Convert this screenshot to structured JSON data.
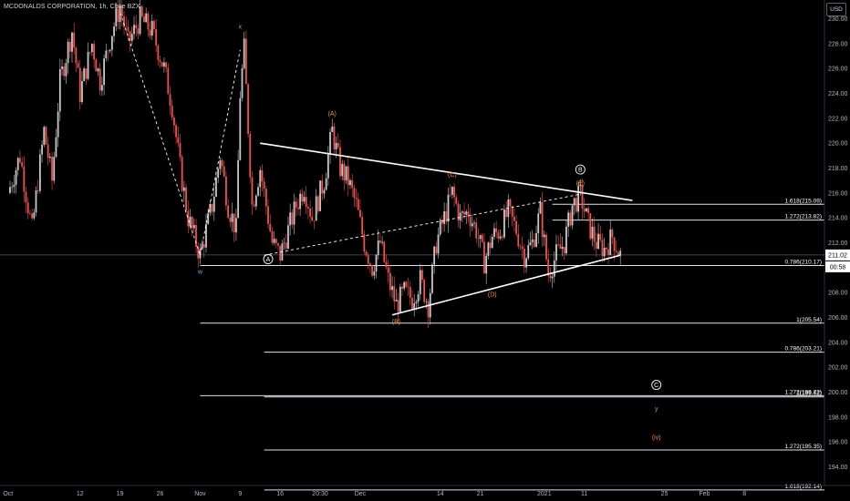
{
  "header": {
    "title": "MCDONALDS CORPORATION, 1h, Cboe BZX",
    "currency": "USD"
  },
  "price_badges": {
    "last_price": "211.02",
    "countdown": "00:58"
  },
  "colors": {
    "background": "#000000",
    "bull_candle": "#c8c8c8",
    "bear_candle": "#ef5350",
    "wave_blue": "#5fb4d8",
    "wave_orange": "#f7931e",
    "trend_line": "#ffffff"
  },
  "chart_data": {
    "type": "candlestick",
    "title": "MCDONALDS CORPORATION, 1h, Cboe BZX",
    "y_axis": {
      "position": "right",
      "ticks": [
        194,
        196,
        198,
        200,
        202,
        204,
        206,
        208,
        210,
        212,
        214,
        216,
        218,
        220,
        222,
        224,
        226,
        228,
        230
      ],
      "tick_labels": [
        "194.00",
        "196.00",
        "198.00",
        "200.00",
        "202.00",
        "204.00",
        "206.00",
        "208.00",
        "210.00",
        "212.00",
        "214.00",
        "216.00",
        "218.00",
        "220.00",
        "222.00",
        "224.00",
        "226.00",
        "228.00",
        "230.00"
      ],
      "range": [
        192.5,
        231.5
      ]
    },
    "x_axis": {
      "ticks": [
        {
          "label": "Oct",
          "x": 0
        },
        {
          "label": "12",
          "x": 9
        },
        {
          "label": "19",
          "x": 14
        },
        {
          "label": "26",
          "x": 19
        },
        {
          "label": "Nov",
          "x": 24
        },
        {
          "label": "9",
          "x": 29
        },
        {
          "label": "16",
          "x": 34
        },
        {
          "label": "20:30",
          "x": 39
        },
        {
          "label": "Dec",
          "x": 44
        },
        {
          "label": "14",
          "x": 54
        },
        {
          "label": "21",
          "x": 59
        },
        {
          "label": "2021",
          "x": 67
        },
        {
          "label": "11",
          "x": 72
        },
        {
          "label": "25",
          "x": 82
        },
        {
          "label": "Feb",
          "x": 87
        },
        {
          "label": "8",
          "x": 92
        }
      ],
      "range": [
        -1,
        102
      ]
    },
    "price_path": [
      [
        0,
        216
      ],
      [
        1.5,
        219
      ],
      [
        3,
        213
      ],
      [
        4.5,
        221
      ],
      [
        5.5,
        217
      ],
      [
        6.5,
        225
      ],
      [
        8,
        229
      ],
      [
        9,
        224
      ],
      [
        10.5,
        228
      ],
      [
        11.5,
        225
      ],
      [
        13,
        229
      ],
      [
        14,
        231
      ],
      [
        15,
        228
      ],
      [
        16.5,
        230
      ],
      [
        18,
        229
      ],
      [
        19.5,
        226
      ],
      [
        20.5,
        223
      ],
      [
        21.5,
        218
      ],
      [
        22.5,
        214
      ],
      [
        24,
        211
      ],
      [
        25.5,
        215
      ],
      [
        26.5,
        219
      ],
      [
        27.5,
        215
      ],
      [
        28.5,
        213
      ],
      [
        29,
        224
      ],
      [
        29.5,
        227.5
      ],
      [
        30.5,
        215
      ],
      [
        31.5,
        218
      ],
      [
        33,
        212
      ],
      [
        34,
        211
      ],
      [
        35,
        213
      ],
      [
        36,
        215
      ],
      [
        37,
        216.5
      ],
      [
        38,
        214
      ],
      [
        39.5,
        217
      ],
      [
        40.5,
        221
      ],
      [
        41.5,
        218
      ],
      [
        42.5,
        217
      ],
      [
        43.5,
        215
      ],
      [
        44.5,
        212
      ],
      [
        45.5,
        210
      ],
      [
        46.5,
        212
      ],
      [
        47.5,
        209
      ],
      [
        48.5,
        207
      ],
      [
        49.5,
        208
      ],
      [
        50.5,
        207.5
      ],
      [
        51.5,
        209
      ],
      [
        52.5,
        207
      ],
      [
        53.5,
        212
      ],
      [
        54.5,
        214
      ],
      [
        55.5,
        216
      ],
      [
        56.5,
        214
      ],
      [
        57.5,
        214.5
      ],
      [
        58.5,
        213
      ],
      [
        59.5,
        210.5
      ],
      [
        60.5,
        212.5
      ],
      [
        61.5,
        213
      ],
      [
        62.5,
        214.5
      ],
      [
        63.5,
        213
      ],
      [
        64.5,
        211
      ],
      [
        65.5,
        212
      ],
      [
        66.5,
        214.5
      ],
      [
        67.5,
        209.5
      ],
      [
        68.5,
        211
      ],
      [
        69.5,
        212
      ],
      [
        70.5,
        215
      ],
      [
        71.5,
        215.8
      ],
      [
        72.5,
        213.5
      ],
      [
        73.5,
        212
      ],
      [
        74.5,
        211.5
      ],
      [
        75.5,
        212.5
      ],
      [
        76.5,
        211
      ]
    ],
    "fib_levels": [
      {
        "label": "1.618(215.09)",
        "value": 215.09,
        "x_start": 68
      },
      {
        "label": "1.272(213.82)",
        "value": 213.82,
        "x_start": 68
      },
      {
        "label": "0.786(210.17)",
        "value": 210.17,
        "x_start": 24
      },
      {
        "label": "1(205.54)",
        "value": 205.54,
        "x_start": 24
      },
      {
        "label": "0.786(203.21)",
        "value": 203.21,
        "x_start": 32
      },
      {
        "label": "1.272(199.72)",
        "value": 199.72,
        "x_start": 24
      },
      {
        "label": "1(199.62)",
        "value": 199.62,
        "x_start": 32
      },
      {
        "label": "1.272(195.35)",
        "value": 195.35,
        "x_start": 32
      },
      {
        "label": "1.618(192.14)",
        "value": 192.14,
        "x_start": 32
      }
    ],
    "horizontal_line": {
      "value": 211.02
    },
    "wave_labels": [
      {
        "text": "w",
        "x": 24,
        "y": 209.5,
        "color": "blue"
      },
      {
        "text": "x",
        "x": 29,
        "y": 229.2,
        "color": "blue"
      },
      {
        "text": "A",
        "x": 32.5,
        "y": 210.5,
        "color": "white",
        "circled": true
      },
      {
        "text": "(A)",
        "x": 40.5,
        "y": 222.2,
        "color": "orange"
      },
      {
        "text": "(B)",
        "x": 48.5,
        "y": 205.5,
        "color": "orange"
      },
      {
        "text": "(C)",
        "x": 55.5,
        "y": 217.3,
        "color": "orange"
      },
      {
        "text": "(D)",
        "x": 60.5,
        "y": 207.7,
        "color": "orange"
      },
      {
        "text": "(E)",
        "x": 71.5,
        "y": 216.6,
        "color": "orange"
      },
      {
        "text": "B",
        "x": 71.5,
        "y": 217.7,
        "color": "white",
        "circled": true
      },
      {
        "text": "C",
        "x": 81,
        "y": 200.4,
        "color": "white",
        "circled": true
      },
      {
        "text": "y",
        "x": 81,
        "y": 198.5,
        "color": "blue"
      },
      {
        "text": "(iv)",
        "x": 81,
        "y": 196.2,
        "color": "orange"
      }
    ],
    "trend_lines": [
      {
        "from": [
          31.5,
          220
        ],
        "to": [
          78,
          215.4
        ],
        "style": "solid"
      },
      {
        "from": [
          48,
          206.2
        ],
        "to": [
          76.5,
          211
        ],
        "style": "solid"
      },
      {
        "from": [
          32,
          211
        ],
        "to": [
          71.5,
          215.9
        ],
        "style": "dashed"
      },
      {
        "from": [
          24,
          211
        ],
        "to": [
          29,
          227.5
        ],
        "style": "dashed"
      },
      {
        "from": [
          14,
          230.5
        ],
        "to": [
          24,
          211
        ],
        "style": "dashed"
      }
    ]
  }
}
